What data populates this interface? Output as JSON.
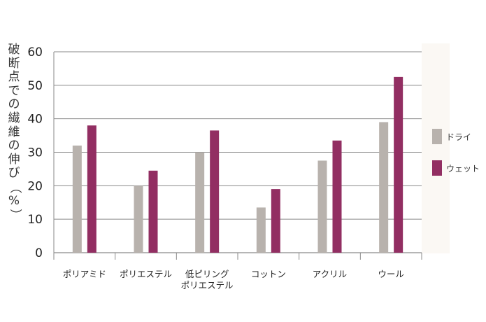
{
  "chart_data": {
    "type": "bar",
    "ylabel": "破断点での繊維の伸び（%）",
    "ylim": [
      0,
      60
    ],
    "yticks": [
      "0",
      "10",
      "20",
      "30",
      "40",
      "50",
      "60"
    ],
    "grid": true,
    "legend_position": "right",
    "categories": [
      "ポリアミド",
      "ポリエステル",
      "低ピリング\nポリエステル",
      "コットン",
      "アクリル",
      "ウール"
    ],
    "series": [
      {
        "name": "ドライ",
        "color": "#b8b2ad",
        "values": [
          32,
          20,
          30,
          13.5,
          27.5,
          39
        ]
      },
      {
        "name": "ウェット",
        "color": "#922e62",
        "values": [
          38,
          24.5,
          36.5,
          19,
          33.5,
          52.5
        ]
      }
    ]
  }
}
